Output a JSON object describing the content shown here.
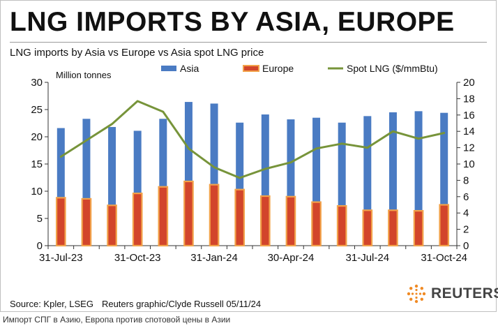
{
  "title": "LNG IMPORTS BY ASIA, EUROPE",
  "footer": {
    "source": "Source: Kpler, LSEG",
    "credit": "Reuters graphic/Clyde Russell 05/11/24",
    "logo_text": "REUTERS",
    "caption": "Импорт СПГ в Азию, Европа против спотовой цены в Азии"
  },
  "chart_data": {
    "type": "bar",
    "title": "LNG imports by Asia vs Europe vs Asia spot LNG price",
    "ylabel": "Million tonnes",
    "ylim": [
      0,
      30
    ],
    "yticks": [
      0,
      5,
      10,
      15,
      20,
      25,
      30
    ],
    "y2lim": [
      0,
      20
    ],
    "y2ticks": [
      0,
      2,
      4,
      6,
      8,
      10,
      12,
      14,
      16,
      18,
      20
    ],
    "categories": [
      "Jul-23",
      "Aug-23",
      "Sep-23",
      "Oct-23",
      "Nov-23",
      "Dec-23",
      "Jan-24",
      "Feb-24",
      "Mar-24",
      "Apr-24",
      "May-24",
      "Jun-24",
      "Jul-24",
      "Aug-24",
      "Sep-24",
      "Oct-24"
    ],
    "xtick_labels": [
      {
        "index": 0,
        "label": "31-Jul-23"
      },
      {
        "index": 3,
        "label": "31-Oct-23"
      },
      {
        "index": 6,
        "label": "31-Jan-24"
      },
      {
        "index": 9,
        "label": "30-Apr-24"
      },
      {
        "index": 12,
        "label": "31-Jul-24"
      },
      {
        "index": 15,
        "label": "31-Oct-24"
      }
    ],
    "legend_position": "top",
    "series": [
      {
        "name": "Asia",
        "kind": "bar",
        "axis": "left",
        "color": "#4a7bc3",
        "values": [
          21.6,
          23.3,
          21.8,
          21.1,
          23.3,
          26.4,
          26.1,
          22.6,
          24.1,
          23.2,
          23.5,
          22.6,
          23.8,
          24.5,
          24.7,
          24.4
        ]
      },
      {
        "name": "Europe",
        "kind": "bar",
        "axis": "left",
        "color": "#d2452b",
        "edge_color": "#f2a24a",
        "values": [
          8.8,
          8.6,
          7.4,
          9.6,
          10.8,
          11.8,
          11.2,
          10.3,
          9.1,
          9.0,
          8.0,
          7.3,
          6.5,
          6.5,
          6.4,
          7.5
        ]
      },
      {
        "name": "Spot LNG ($/mmBtu)",
        "kind": "line",
        "axis": "right",
        "color": "#77943a",
        "values": [
          10.9,
          12.9,
          14.9,
          17.7,
          16.4,
          11.9,
          9.6,
          8.3,
          9.4,
          10.2,
          11.9,
          12.5,
          12.0,
          14.0,
          13.1,
          13.8
        ]
      }
    ]
  }
}
